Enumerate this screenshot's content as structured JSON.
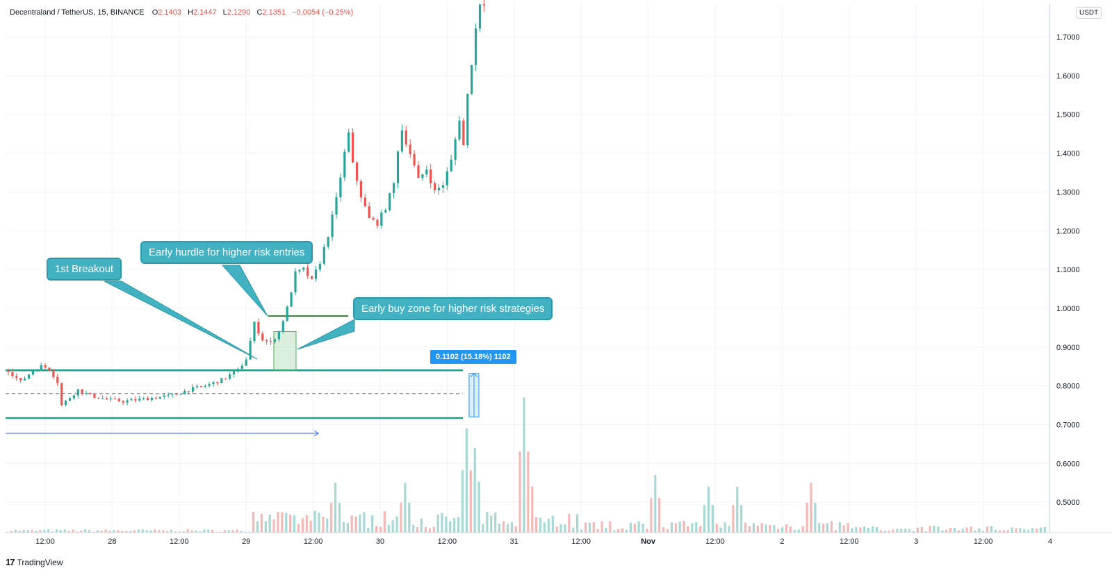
{
  "header": {
    "symbol": "Decentraland / TetherUS, 15, BINANCE",
    "o_label": "O",
    "o_value": "2.1403",
    "h_label": "H",
    "h_value": "2.1447",
    "l_label": "L",
    "l_value": "2.1290",
    "c_label": "C",
    "c_value": "2.1351",
    "change": "−0.0054 (−0.25%)"
  },
  "currency_badge": "USDT",
  "annotations": {
    "first_breakout": "1st Breakout",
    "early_hurdle": "Early hurdle for higher risk entries",
    "early_buy_zone": "Early buy zone for higher risk strategies",
    "measure_label": "0.1102 (15.18%) 1102"
  },
  "branding": {
    "logo": "17",
    "name": "TradingView"
  },
  "colors": {
    "up": "#26a69a",
    "down": "#ef5350",
    "accent": "#2196f3",
    "callout": "#42b2c2",
    "level_line": "#1e9e88",
    "zone_line": "#2e7d32"
  },
  "chart_data": {
    "type": "candlestick",
    "y_axis": {
      "ticks": [
        "1.7000",
        "1.6000",
        "1.5000",
        "1.4000",
        "1.3000",
        "1.2000",
        "1.1000",
        "1.0000",
        "0.9000",
        "0.8000",
        "0.7000",
        "0.6000",
        "0.5000"
      ],
      "tick_values": [
        1.7,
        1.6,
        1.5,
        1.4,
        1.3,
        1.2,
        1.1,
        1.0,
        0.9,
        0.8,
        0.7,
        0.6,
        0.5
      ],
      "range": [
        0.43,
        1.78
      ]
    },
    "x_axis": {
      "labels": [
        "12:00",
        "28",
        "12:00",
        "29",
        "12:00",
        "30",
        "12:00",
        "31",
        "12:00",
        "Nov",
        "12:00",
        "2",
        "12:00",
        "3",
        "12:00",
        "4"
      ],
      "bold": [
        false,
        false,
        false,
        false,
        false,
        false,
        false,
        false,
        false,
        true,
        false,
        false,
        false,
        false,
        false,
        false
      ]
    },
    "price_path": [
      [
        0,
        0.84
      ],
      [
        3,
        0.81
      ],
      [
        6,
        0.84
      ],
      [
        8,
        0.85
      ],
      [
        10,
        0.845
      ],
      [
        12,
        0.81
      ],
      [
        13,
        0.75
      ],
      [
        14,
        0.76
      ],
      [
        17,
        0.79
      ],
      [
        20,
        0.775
      ],
      [
        24,
        0.765
      ],
      [
        28,
        0.76
      ],
      [
        32,
        0.765
      ],
      [
        36,
        0.77
      ],
      [
        40,
        0.775
      ],
      [
        44,
        0.79
      ],
      [
        48,
        0.8
      ],
      [
        52,
        0.815
      ],
      [
        56,
        0.84
      ],
      [
        58,
        0.87
      ],
      [
        60,
        0.96
      ],
      [
        62,
        0.92
      ],
      [
        64,
        0.91
      ],
      [
        66,
        0.94
      ],
      [
        68,
        1.0
      ],
      [
        70,
        1.09
      ],
      [
        72,
        1.1
      ],
      [
        74,
        1.07
      ],
      [
        76,
        1.12
      ],
      [
        78,
        1.19
      ],
      [
        80,
        1.28
      ],
      [
        82,
        1.4
      ],
      [
        83,
        1.45
      ],
      [
        84,
        1.37
      ],
      [
        86,
        1.29
      ],
      [
        88,
        1.23
      ],
      [
        90,
        1.22
      ],
      [
        92,
        1.26
      ],
      [
        94,
        1.32
      ],
      [
        95,
        1.41
      ],
      [
        96,
        1.46
      ],
      [
        98,
        1.4
      ],
      [
        100,
        1.33
      ],
      [
        102,
        1.36
      ],
      [
        104,
        1.3
      ],
      [
        106,
        1.32
      ],
      [
        108,
        1.38
      ],
      [
        110,
        1.49
      ],
      [
        111,
        1.42
      ],
      [
        112,
        1.55
      ],
      [
        114,
        1.72
      ],
      [
        115,
        1.79
      ]
    ],
    "levels": {
      "breakout_resistance": 0.84,
      "range_support": 0.717,
      "range_mid_dashed": 0.78,
      "early_hurdle": 0.98,
      "buy_zone": [
        0.84,
        0.94
      ]
    },
    "measure": {
      "from": 0.72,
      "to": 0.832,
      "delta": 0.1102,
      "percent": 15.18
    },
    "volume_peaks": [
      [
        62,
        0.47
      ],
      [
        80,
        0.55
      ],
      [
        97,
        0.55
      ],
      [
        112,
        0.69
      ],
      [
        114,
        0.64
      ],
      [
        126,
        0.77
      ],
      [
        127,
        0.62
      ],
      [
        158,
        0.57
      ],
      [
        171,
        0.54
      ],
      [
        178,
        0.54
      ],
      [
        196,
        0.55
      ]
    ]
  }
}
